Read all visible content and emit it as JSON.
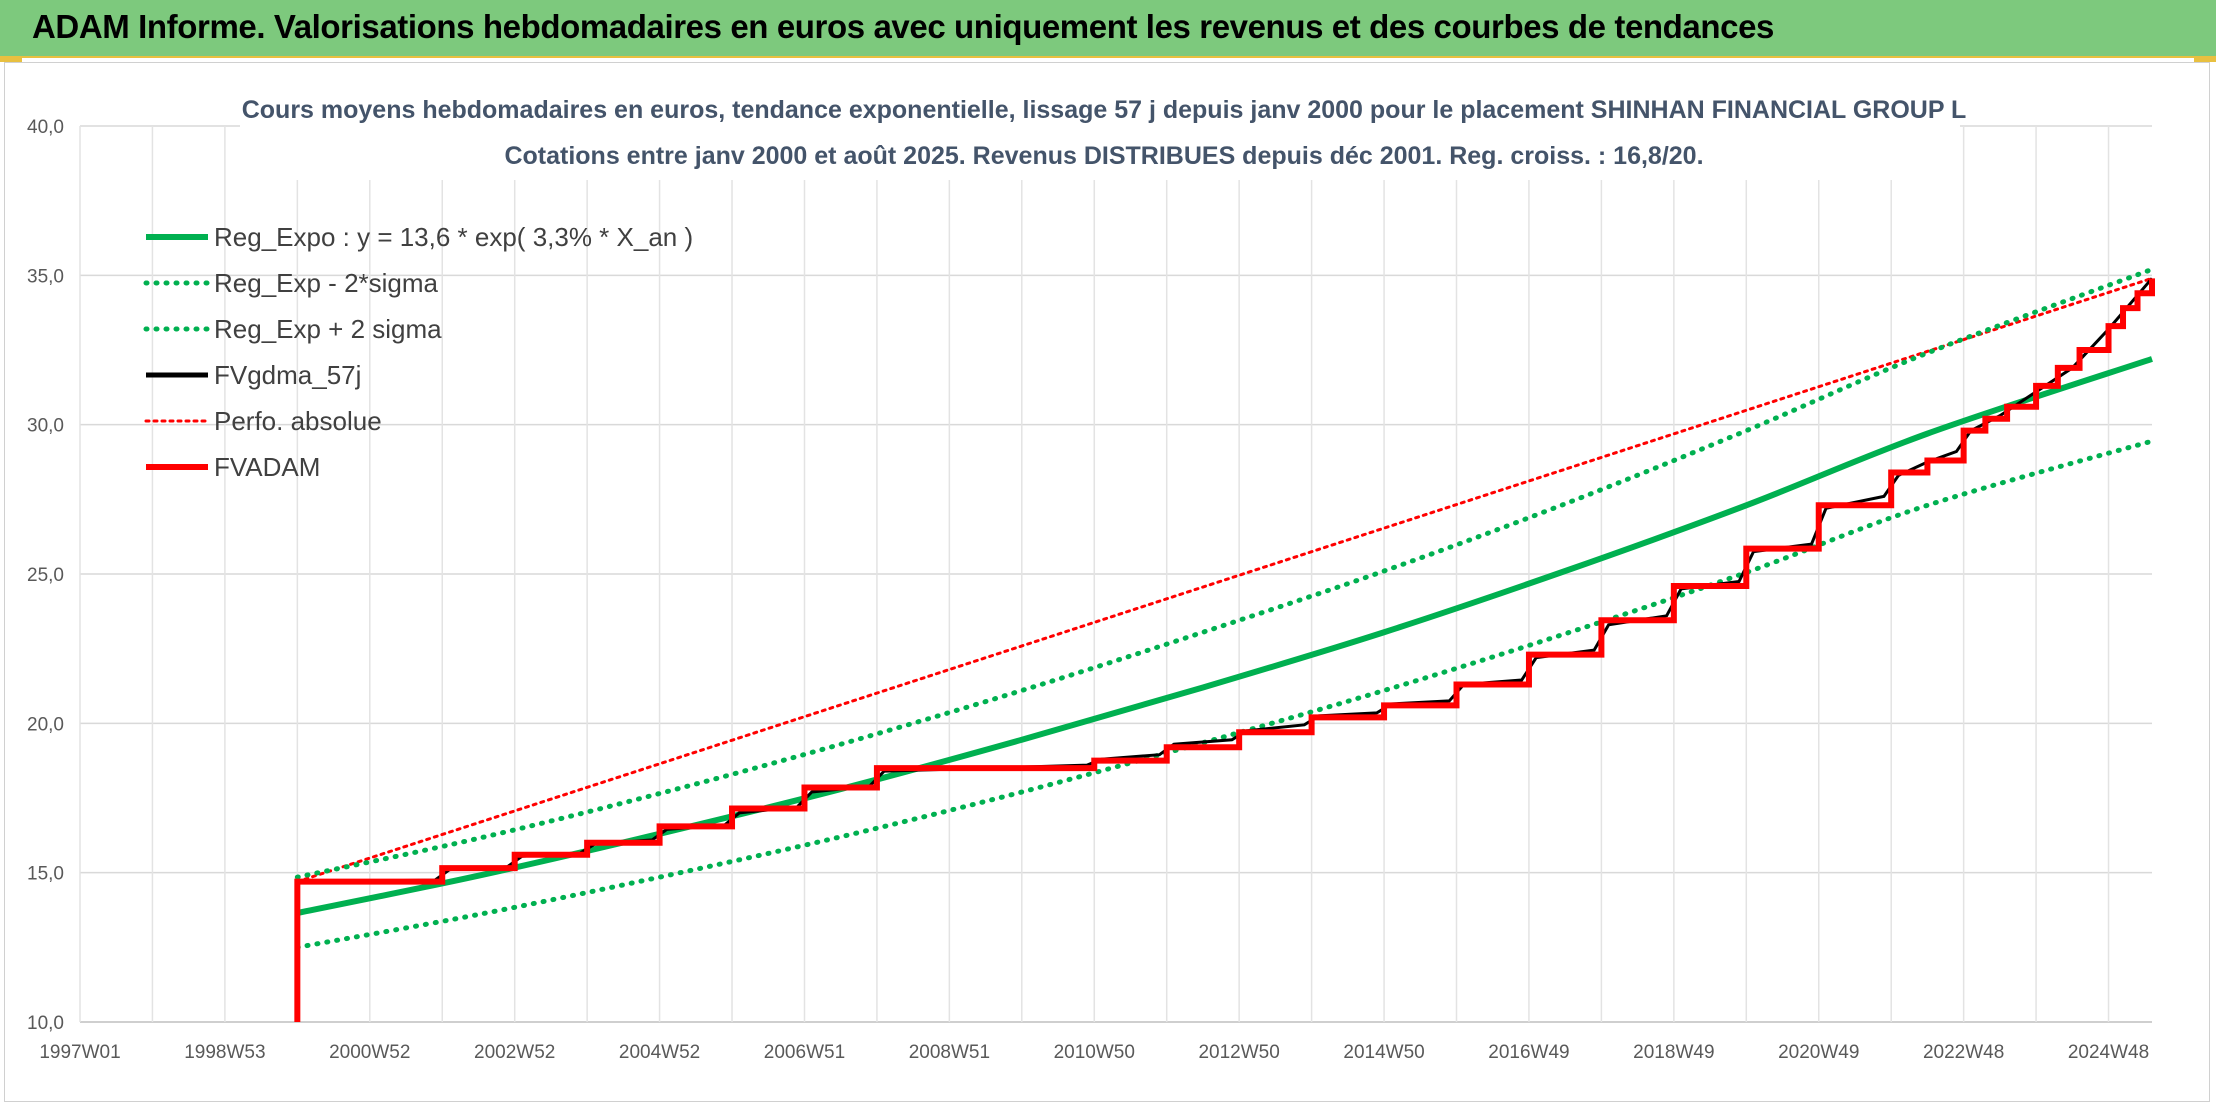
{
  "banner": {
    "title": "ADAM Informe. Valorisations hebdomadaires en euros avec uniquement les revenus et des courbes de tendances"
  },
  "colors": {
    "banner_bg": "#7dc97d",
    "trend_green": "#00b050",
    "series_red": "#ff0000",
    "series_black": "#000000"
  },
  "chart_data": {
    "type": "line",
    "title_line1": "Cours moyens hebdomadaires en euros, tendance exponentielle, lissage 57 j depuis janv 2000 pour le placement SHINHAN FINANCIAL GROUP L",
    "title_line2": "Cotations entre janv 2000 et août 2025. Revenus DISTRIBUES depuis déc 2001. Reg. croiss. : 16,8/20.",
    "xlabel": "",
    "ylabel": "",
    "ylim": [
      10,
      40
    ],
    "xlim": [
      1997.0,
      2025.6
    ],
    "grid": true,
    "legend_position": "top-left",
    "y_ticks": [
      "10,0",
      "15,0",
      "20,0",
      "25,0",
      "30,0",
      "35,0",
      "40,0"
    ],
    "x_ticks": [
      {
        "label": "1997W01",
        "x": 1997.0
      },
      {
        "label": "1998W53",
        "x": 1999.0
      },
      {
        "label": "2000W52",
        "x": 2001.0
      },
      {
        "label": "2002W52",
        "x": 2003.0
      },
      {
        "label": "2004W52",
        "x": 2005.0
      },
      {
        "label": "2006W51",
        "x": 2007.0
      },
      {
        "label": "2008W51",
        "x": 2009.0
      },
      {
        "label": "2010W50",
        "x": 2011.0
      },
      {
        "label": "2012W50",
        "x": 2013.0
      },
      {
        "label": "2014W50",
        "x": 2015.0
      },
      {
        "label": "2016W49",
        "x": 2017.0
      },
      {
        "label": "2018W49",
        "x": 2019.0
      },
      {
        "label": "2020W49",
        "x": 2021.0
      },
      {
        "label": "2022W48",
        "x": 2023.0
      },
      {
        "label": "2024W48",
        "x": 2025.0
      }
    ],
    "series": [
      {
        "name": "Reg_Expo : y = 13,6 * exp( 3,3% *  X_an )",
        "style": "solid",
        "color": "#00b050",
        "points": [
          [
            2000.0,
            13.65
          ],
          [
            2002.5,
            14.9
          ],
          [
            2005.0,
            16.3
          ],
          [
            2007.5,
            17.8
          ],
          [
            2010.0,
            19.45
          ],
          [
            2012.5,
            21.2
          ],
          [
            2015.0,
            23.05
          ],
          [
            2017.5,
            25.1
          ],
          [
            2020.0,
            27.3
          ],
          [
            2022.5,
            29.7
          ],
          [
            2025.6,
            32.2
          ]
        ]
      },
      {
        "name": "Reg_Exp - 2*sigma",
        "style": "dotted",
        "color": "#00b050",
        "points": [
          [
            2000.0,
            12.5
          ],
          [
            2002.5,
            13.6
          ],
          [
            2005.0,
            14.85
          ],
          [
            2007.5,
            16.2
          ],
          [
            2010.0,
            17.7
          ],
          [
            2012.5,
            19.35
          ],
          [
            2015.0,
            21.1
          ],
          [
            2017.5,
            23.0
          ],
          [
            2020.0,
            25.05
          ],
          [
            2022.5,
            27.3
          ],
          [
            2025.6,
            29.45
          ]
        ]
      },
      {
        "name": "Reg_Exp + 2 sigma",
        "style": "dotted",
        "color": "#00b050",
        "points": [
          [
            2000.0,
            14.85
          ],
          [
            2002.5,
            16.15
          ],
          [
            2005.0,
            17.65
          ],
          [
            2007.5,
            19.3
          ],
          [
            2010.0,
            21.1
          ],
          [
            2012.5,
            23.05
          ],
          [
            2015.0,
            25.1
          ],
          [
            2017.5,
            27.35
          ],
          [
            2020.0,
            29.8
          ],
          [
            2022.5,
            32.4
          ],
          [
            2025.6,
            35.2
          ]
        ]
      },
      {
        "name": "FVgdma_57j",
        "style": "solid",
        "color": "#000000",
        "points": [
          [
            2000.0,
            14.7
          ],
          [
            2001.9,
            14.75
          ],
          [
            2002.1,
            15.1
          ],
          [
            2002.9,
            15.2
          ],
          [
            2003.1,
            15.55
          ],
          [
            2003.9,
            15.65
          ],
          [
            2004.1,
            15.95
          ],
          [
            2004.9,
            16.1
          ],
          [
            2005.1,
            16.45
          ],
          [
            2005.9,
            16.6
          ],
          [
            2006.1,
            17.0
          ],
          [
            2006.9,
            17.2
          ],
          [
            2007.1,
            17.7
          ],
          [
            2007.9,
            17.9
          ],
          [
            2008.1,
            18.4
          ],
          [
            2010.9,
            18.6
          ],
          [
            2011.1,
            18.8
          ],
          [
            2011.9,
            18.95
          ],
          [
            2012.1,
            19.3
          ],
          [
            2012.9,
            19.45
          ],
          [
            2013.1,
            19.75
          ],
          [
            2013.9,
            19.95
          ],
          [
            2014.1,
            20.25
          ],
          [
            2014.9,
            20.35
          ],
          [
            2015.1,
            20.65
          ],
          [
            2015.9,
            20.75
          ],
          [
            2016.1,
            21.3
          ],
          [
            2016.9,
            21.45
          ],
          [
            2017.1,
            22.2
          ],
          [
            2017.9,
            22.45
          ],
          [
            2018.1,
            23.3
          ],
          [
            2018.9,
            23.6
          ],
          [
            2019.1,
            24.5
          ],
          [
            2019.9,
            24.75
          ],
          [
            2020.1,
            25.75
          ],
          [
            2020.9,
            26.0
          ],
          [
            2021.1,
            27.2
          ],
          [
            2021.9,
            27.6
          ],
          [
            2022.1,
            28.3
          ],
          [
            2022.5,
            28.75
          ],
          [
            2022.9,
            29.1
          ],
          [
            2023.1,
            29.8
          ],
          [
            2023.5,
            30.3
          ],
          [
            2024.0,
            31.1
          ],
          [
            2024.5,
            31.9
          ],
          [
            2025.0,
            33.2
          ],
          [
            2025.6,
            34.9
          ]
        ]
      },
      {
        "name": "Perfo. absolue",
        "style": "dotted",
        "color": "#ff0000",
        "points": [
          [
            2000.0,
            14.7
          ],
          [
            2025.6,
            34.9
          ]
        ]
      },
      {
        "name": "FVADAM",
        "style": "solid",
        "color": "#ff0000",
        "step": true,
        "points": [
          [
            2000.0,
            10.0
          ],
          [
            2000.0,
            14.7
          ],
          [
            2002.0,
            14.7
          ],
          [
            2002.0,
            15.15
          ],
          [
            2003.0,
            15.15
          ],
          [
            2003.0,
            15.6
          ],
          [
            2004.0,
            15.6
          ],
          [
            2004.0,
            16.0
          ],
          [
            2005.0,
            16.0
          ],
          [
            2005.0,
            16.55
          ],
          [
            2006.0,
            16.55
          ],
          [
            2006.0,
            17.15
          ],
          [
            2007.0,
            17.15
          ],
          [
            2007.0,
            17.85
          ],
          [
            2008.0,
            17.85
          ],
          [
            2008.0,
            18.5
          ],
          [
            2011.0,
            18.5
          ],
          [
            2011.0,
            18.75
          ],
          [
            2012.0,
            18.75
          ],
          [
            2012.0,
            19.2
          ],
          [
            2013.0,
            19.2
          ],
          [
            2013.0,
            19.7
          ],
          [
            2014.0,
            19.7
          ],
          [
            2014.0,
            20.2
          ],
          [
            2015.0,
            20.2
          ],
          [
            2015.0,
            20.6
          ],
          [
            2016.0,
            20.6
          ],
          [
            2016.0,
            21.3
          ],
          [
            2017.0,
            21.3
          ],
          [
            2017.0,
            22.3
          ],
          [
            2018.0,
            22.3
          ],
          [
            2018.0,
            23.45
          ],
          [
            2019.0,
            23.45
          ],
          [
            2019.0,
            24.6
          ],
          [
            2020.0,
            24.6
          ],
          [
            2020.0,
            25.85
          ],
          [
            2021.0,
            25.85
          ],
          [
            2021.0,
            27.3
          ],
          [
            2022.0,
            27.3
          ],
          [
            2022.0,
            28.4
          ],
          [
            2022.5,
            28.4
          ],
          [
            2022.5,
            28.8
          ],
          [
            2023.0,
            28.8
          ],
          [
            2023.0,
            29.8
          ],
          [
            2023.3,
            29.8
          ],
          [
            2023.3,
            30.2
          ],
          [
            2023.6,
            30.2
          ],
          [
            2023.6,
            30.6
          ],
          [
            2024.0,
            30.6
          ],
          [
            2024.0,
            31.3
          ],
          [
            2024.3,
            31.3
          ],
          [
            2024.3,
            31.9
          ],
          [
            2024.6,
            31.9
          ],
          [
            2024.6,
            32.5
          ],
          [
            2025.0,
            32.5
          ],
          [
            2025.0,
            33.3
          ],
          [
            2025.2,
            33.3
          ],
          [
            2025.2,
            33.9
          ],
          [
            2025.4,
            33.9
          ],
          [
            2025.4,
            34.4
          ],
          [
            2025.6,
            34.4
          ],
          [
            2025.6,
            34.9
          ]
        ]
      }
    ]
  }
}
